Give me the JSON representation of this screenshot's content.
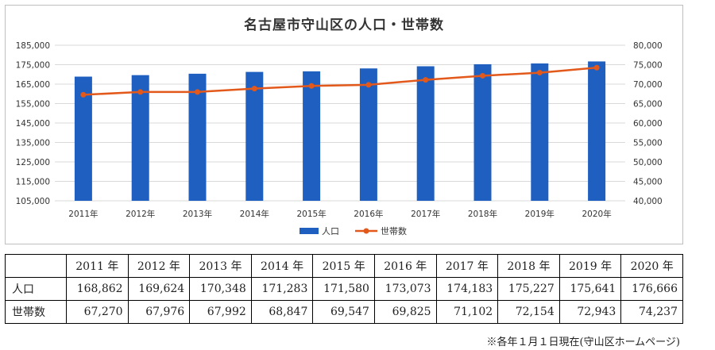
{
  "chart_data": {
    "type": "bar",
    "title": "名古屋市守山区の人口・世帯数",
    "categories": [
      "2011年",
      "2012年",
      "2013年",
      "2014年",
      "2015年",
      "2016年",
      "2017年",
      "2018年",
      "2019年",
      "2020年"
    ],
    "series": [
      {
        "name": "人口",
        "type": "bar",
        "axis": "left",
        "color": "#1f5fc0",
        "values": [
          168862,
          169624,
          170348,
          171283,
          171580,
          173073,
          174183,
          175227,
          175641,
          176666
        ]
      },
      {
        "name": "世帯数",
        "type": "line",
        "axis": "right",
        "color": "#e2591b",
        "values": [
          67270,
          67976,
          67992,
          68847,
          69547,
          69825,
          71102,
          72154,
          72943,
          74237
        ]
      }
    ],
    "y_left": {
      "ylim": [
        105000,
        185000
      ],
      "ticks": [
        "105,000",
        "115,000",
        "125,000",
        "135,000",
        "145,000",
        "155,000",
        "165,000",
        "175,000",
        "185,000"
      ]
    },
    "y_right": {
      "ylim": [
        40000,
        80000
      ],
      "ticks": [
        "40,000",
        "45,000",
        "50,000",
        "55,000",
        "60,000",
        "65,000",
        "70,000",
        "75,000",
        "80,000"
      ]
    },
    "grid": true,
    "legend": "bottom"
  },
  "table": {
    "headers": [
      "2011 年",
      "2012 年",
      "2013 年",
      "2014 年",
      "2015 年",
      "2016 年",
      "2017 年",
      "2018 年",
      "2019 年",
      "2020 年"
    ],
    "rows": [
      {
        "label": "人口",
        "values": [
          "168,862",
          "169,624",
          "170,348",
          "171,283",
          "171,580",
          "173,073",
          "174,183",
          "175,227",
          "175,641",
          "176,666"
        ]
      },
      {
        "label": "世帯数",
        "values": [
          "67,270",
          "67,976",
          "67,992",
          "68,847",
          "69,547",
          "69,825",
          "71,102",
          "72,154",
          "72,943",
          "74,237"
        ]
      }
    ]
  },
  "footnote": "※各年１月１日現在(守山区ホームページ)"
}
